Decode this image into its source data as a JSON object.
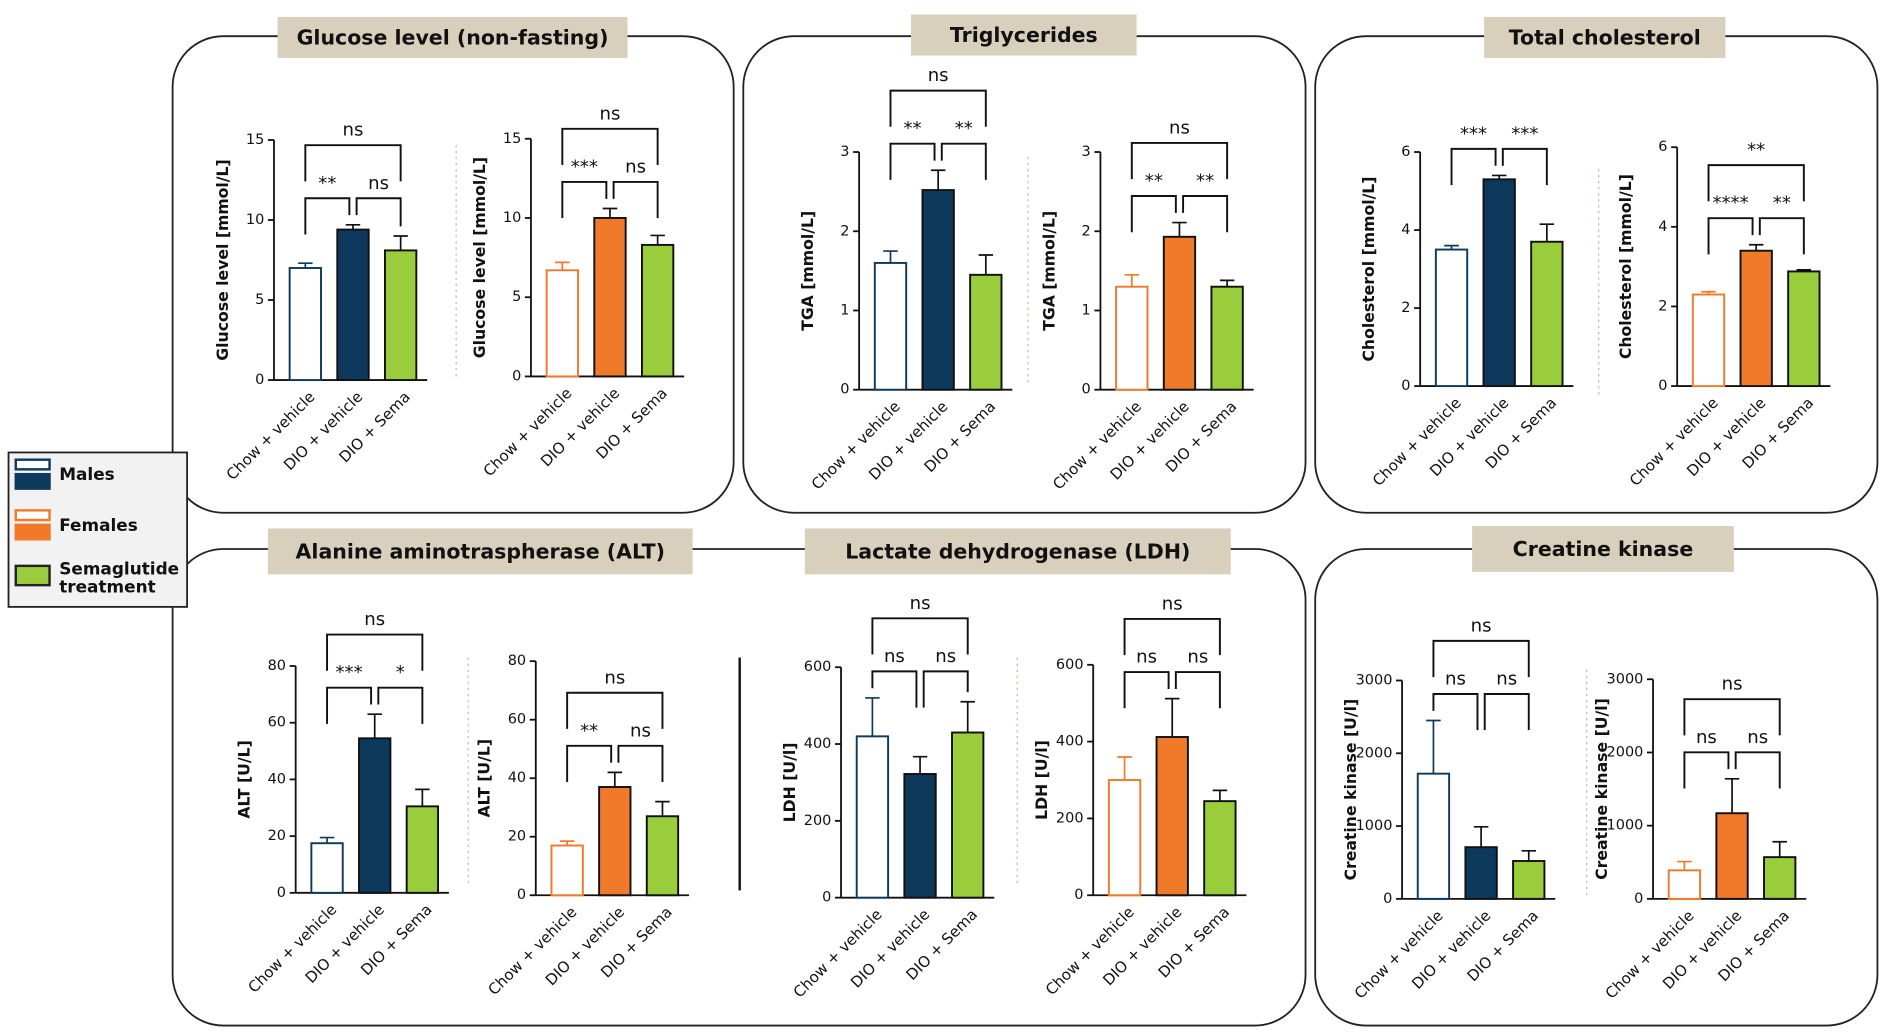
{
  "panels": [
    {
      "title": "Glucose level (non-fasting)"
    },
    {
      "title": "Triglycerides"
    },
    {
      "title": "Total cholesterol"
    },
    {
      "title": "Alanine aminotraspherase (ALT)"
    },
    {
      "title": "Lactate dehydrogenase (LDH)"
    },
    {
      "title": "Creatine kinase"
    }
  ],
  "legend": {
    "items": [
      "Males",
      "Females",
      "Semaglutide treatment"
    ],
    "colors": [
      "#0d3a5c",
      "#f07a2a",
      "#9acd3c"
    ]
  },
  "chart_data": [
    {
      "type": "bar",
      "ylabel": "Glucose level [mmol/L]",
      "categories": [
        "Chow + vehicle",
        "DIO + vehicle",
        "DIO + Sema"
      ],
      "values": [
        7.0,
        9.4,
        8.1
      ],
      "errors": [
        0.3,
        0.3,
        0.9
      ],
      "fills": [
        "#ffffff",
        "#0d3a5c",
        "#9acd3c"
      ],
      "edges": [
        "#0d3a5c",
        "#111111",
        "#111111"
      ],
      "ylim": [
        0,
        15
      ],
      "yticks": [
        0,
        5,
        10,
        15
      ],
      "significance": [
        "**",
        "ns",
        "ns"
      ]
    },
    {
      "type": "bar",
      "ylabel": "Glucose level [mmol/L]",
      "categories": [
        "Chow + vehicle",
        "DIO + vehicle",
        "DIO + Sema"
      ],
      "values": [
        6.7,
        10.0,
        8.3
      ],
      "errors": [
        0.5,
        0.6,
        0.6
      ],
      "fills": [
        "#ffffff",
        "#f07a2a",
        "#9acd3c"
      ],
      "edges": [
        "#f07a2a",
        "#111111",
        "#111111"
      ],
      "ylim": [
        0,
        15
      ],
      "yticks": [
        0,
        5,
        10,
        15
      ],
      "significance": [
        "***",
        "ns",
        "ns"
      ]
    },
    {
      "type": "bar",
      "ylabel": "TGA [mmol/L]",
      "categories": [
        "Chow + vehicle",
        "DIO + vehicle",
        "DIO + Sema"
      ],
      "values": [
        1.6,
        2.52,
        1.45
      ],
      "errors": [
        0.15,
        0.25,
        0.25
      ],
      "fills": [
        "#ffffff",
        "#0d3a5c",
        "#9acd3c"
      ],
      "edges": [
        "#0d3a5c",
        "#111111",
        "#111111"
      ],
      "ylim": [
        0,
        3
      ],
      "yticks": [
        0,
        1,
        2,
        3
      ],
      "significance": [
        "**",
        "**",
        "ns"
      ]
    },
    {
      "type": "bar",
      "ylabel": "TGA [mmol/L]",
      "categories": [
        "Chow + vehicle",
        "DIO + vehicle",
        "DIO + Sema"
      ],
      "values": [
        1.3,
        1.93,
        1.3
      ],
      "errors": [
        0.15,
        0.18,
        0.08
      ],
      "fills": [
        "#ffffff",
        "#f07a2a",
        "#9acd3c"
      ],
      "edges": [
        "#f07a2a",
        "#111111",
        "#111111"
      ],
      "ylim": [
        0,
        3
      ],
      "yticks": [
        0,
        1,
        2,
        3
      ],
      "significance": [
        "**",
        "**",
        "ns"
      ]
    },
    {
      "type": "bar",
      "ylabel": "Cholesterol [mmol/L]",
      "categories": [
        "Chow + vehicle",
        "DIO + vehicle",
        "DIO + Sema"
      ],
      "values": [
        3.5,
        5.3,
        3.7
      ],
      "errors": [
        0.1,
        0.1,
        0.45
      ],
      "fills": [
        "#ffffff",
        "#0d3a5c",
        "#9acd3c"
      ],
      "edges": [
        "#0d3a5c",
        "#111111",
        "#111111"
      ],
      "ylim": [
        0,
        6
      ],
      "yticks": [
        0,
        2,
        4,
        6
      ],
      "significance": [
        "***",
        "***",
        null
      ]
    },
    {
      "type": "bar",
      "ylabel": "Cholesterol [mmol/L]",
      "categories": [
        "Chow + vehicle",
        "DIO + vehicle",
        "DIO + Sema"
      ],
      "values": [
        2.3,
        3.4,
        2.88
      ],
      "errors": [
        0.07,
        0.15,
        0.04
      ],
      "fills": [
        "#ffffff",
        "#f07a2a",
        "#9acd3c"
      ],
      "edges": [
        "#f07a2a",
        "#111111",
        "#111111"
      ],
      "ylim": [
        0,
        6
      ],
      "yticks": [
        0,
        2,
        4,
        6
      ],
      "significance": [
        "****",
        "**",
        "**"
      ]
    },
    {
      "type": "bar",
      "ylabel": "ALT [U/L]",
      "categories": [
        "Chow + vehicle",
        "DIO + vehicle",
        "DIO + Sema"
      ],
      "values": [
        17.5,
        54.5,
        30.5
      ],
      "errors": [
        2,
        8.5,
        6
      ],
      "fills": [
        "#ffffff",
        "#0d3a5c",
        "#9acd3c"
      ],
      "edges": [
        "#0d3a5c",
        "#111111",
        "#111111"
      ],
      "ylim": [
        0,
        80
      ],
      "yticks": [
        0,
        20,
        40,
        60,
        80
      ],
      "significance": [
        "***",
        "*",
        "ns"
      ]
    },
    {
      "type": "bar",
      "ylabel": "ALT [U/L]",
      "categories": [
        "Chow + vehicle",
        "DIO + vehicle",
        "DIO + Sema"
      ],
      "values": [
        17,
        37,
        27
      ],
      "errors": [
        1.5,
        5,
        5
      ],
      "fills": [
        "#ffffff",
        "#f07a2a",
        "#9acd3c"
      ],
      "edges": [
        "#f07a2a",
        "#111111",
        "#111111"
      ],
      "ylim": [
        0,
        80
      ],
      "yticks": [
        0,
        20,
        40,
        60,
        80
      ],
      "significance": [
        "**",
        "ns",
        "ns"
      ]
    },
    {
      "type": "bar",
      "ylabel": "LDH [U/l]",
      "categories": [
        "Chow + vehicle",
        "DIO + vehicle",
        "DIO + Sema"
      ],
      "values": [
        420,
        322,
        430
      ],
      "errors": [
        100,
        45,
        80
      ],
      "fills": [
        "#ffffff",
        "#0d3a5c",
        "#9acd3c"
      ],
      "edges": [
        "#0d3a5c",
        "#111111",
        "#111111"
      ],
      "ylim": [
        0,
        600
      ],
      "yticks": [
        0,
        200,
        400,
        600
      ],
      "significance": [
        "ns",
        "ns",
        "ns"
      ]
    },
    {
      "type": "bar",
      "ylabel": "LDH [U/l]",
      "categories": [
        "Chow + vehicle",
        "DIO + vehicle",
        "DIO + Sema"
      ],
      "values": [
        300,
        412,
        245
      ],
      "errors": [
        60,
        100,
        28
      ],
      "fills": [
        "#ffffff",
        "#f07a2a",
        "#9acd3c"
      ],
      "edges": [
        "#f07a2a",
        "#111111",
        "#111111"
      ],
      "ylim": [
        0,
        600
      ],
      "yticks": [
        0,
        200,
        400,
        600
      ],
      "significance": [
        "ns",
        "ns",
        "ns"
      ]
    },
    {
      "type": "bar",
      "ylabel": "Creatine kinase [U/l]",
      "categories": [
        "Chow + vehicle",
        "DIO + vehicle",
        "DIO + Sema"
      ],
      "values": [
        1720,
        710,
        520
      ],
      "errors": [
        730,
        280,
        140
      ],
      "fills": [
        "#ffffff",
        "#0d3a5c",
        "#9acd3c"
      ],
      "edges": [
        "#0d3a5c",
        "#111111",
        "#111111"
      ],
      "ylim": [
        0,
        3000
      ],
      "yticks": [
        0,
        1000,
        2000,
        3000
      ],
      "significance": [
        "ns",
        "ns",
        "ns"
      ]
    },
    {
      "type": "bar",
      "ylabel": "Creatine kinase [U/l]",
      "categories": [
        "Chow + vehicle",
        "DIO + vehicle",
        "DIO + Sema"
      ],
      "values": [
        390,
        1170,
        570
      ],
      "errors": [
        120,
        470,
        210
      ],
      "fills": [
        "#ffffff",
        "#f07a2a",
        "#9acd3c"
      ],
      "edges": [
        "#f07a2a",
        "#111111",
        "#111111"
      ],
      "ylim": [
        0,
        3000
      ],
      "yticks": [
        0,
        1000,
        2000,
        3000
      ],
      "significance": [
        "ns",
        "ns",
        "ns"
      ]
    }
  ]
}
